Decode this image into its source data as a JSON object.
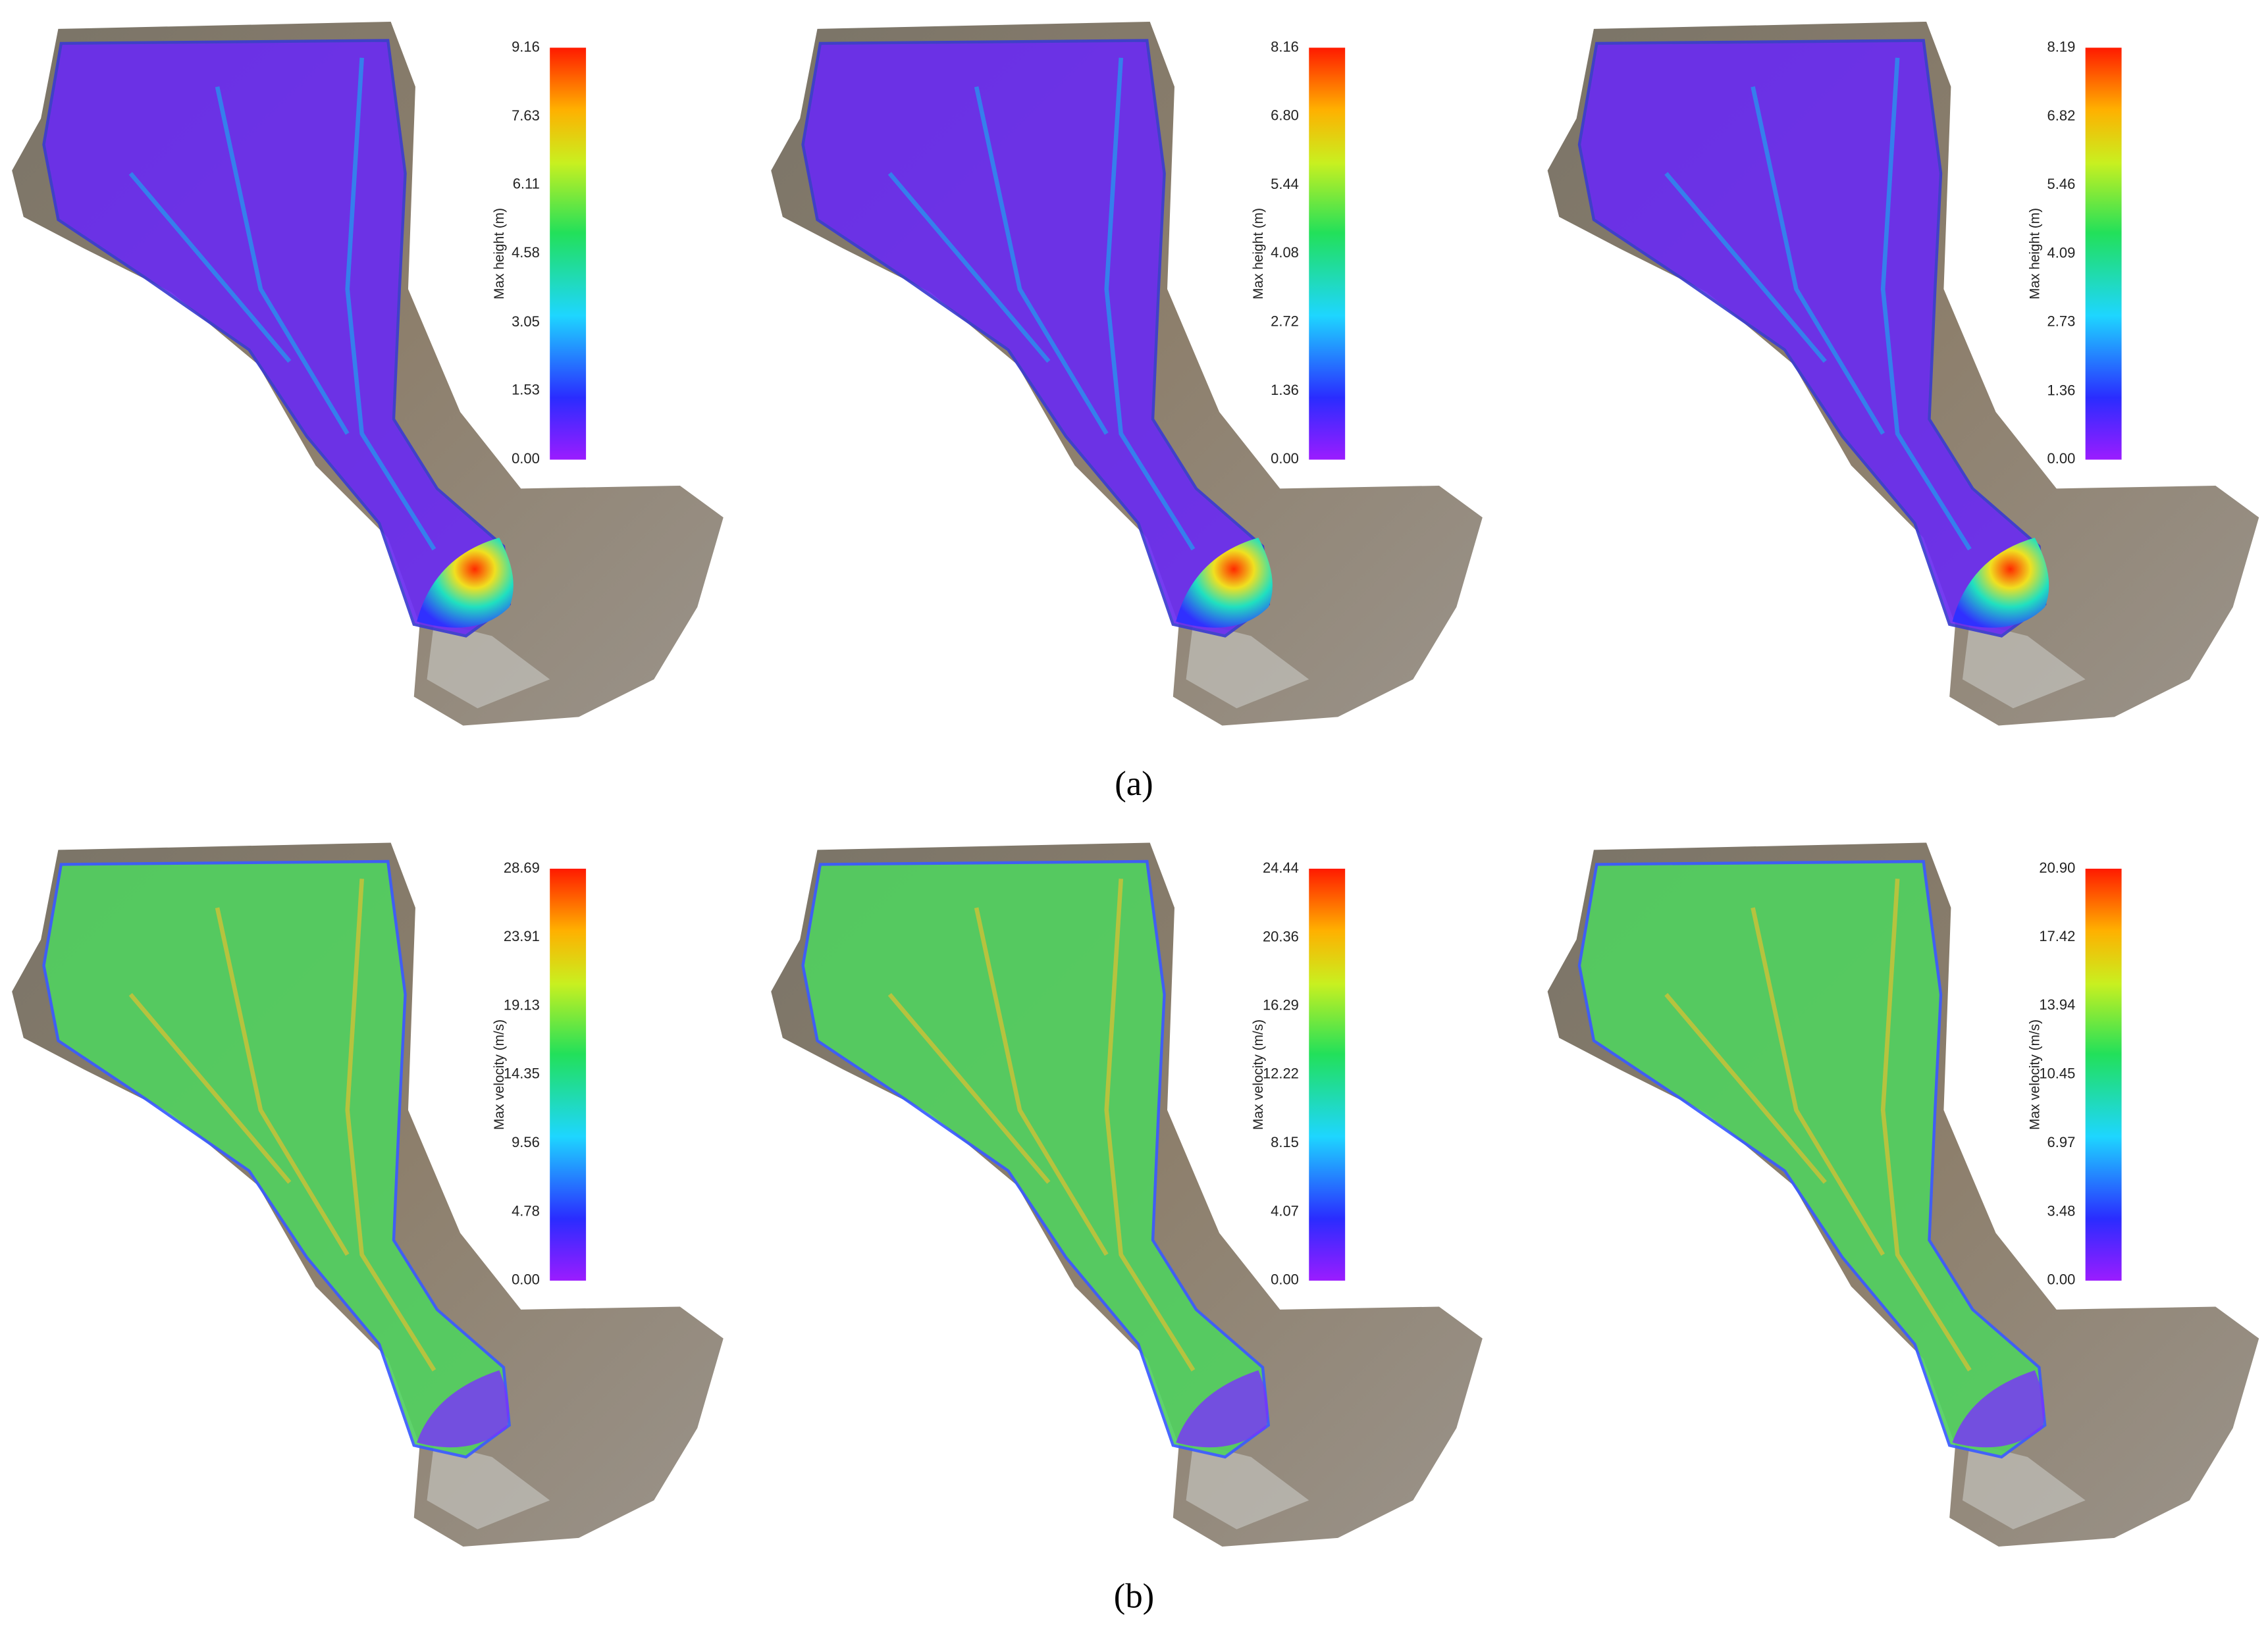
{
  "figure": {
    "panels": [
      {
        "label": "Max height (m)",
        "ylim": [
          0,
          9.16
        ],
        "yticks": [
          {
            "value": 0,
            "label": "0.00"
          },
          1.53,
          3.05,
          4.58,
          6.11,
          7.63,
          9.16
        ]
      },
      {
        "label": "Max height (m)",
        "ylim": [
          0,
          8.16
        ],
        "yticks": [
          {
            "value": 0,
            "label": "0.00"
          },
          1.36,
          2.72,
          4.08,
          5.44,
          {
            "value": 6.8,
            "label": "6.80"
          },
          8.16
        ]
      },
      {
        "label": "Max height (m)",
        "ylim": [
          0,
          8.19
        ],
        "yticks": [
          {
            "value": 0,
            "label": "0.00"
          },
          1.36,
          2.73,
          4.09,
          5.46,
          6.82,
          8.19
        ]
      },
      {
        "label": "Max velocity (m/s)",
        "ylim": [
          0,
          28.69
        ],
        "yticks": [
          {
            "value": 0,
            "label": "0.00"
          },
          4.78,
          9.56,
          14.35,
          19.13,
          23.91,
          28.69
        ]
      },
      {
        "label": "Max velocity (m/s)",
        "ylim": [
          0,
          24.44
        ],
        "yticks": [
          {
            "value": 0,
            "label": "0.00"
          },
          4.07,
          8.15,
          12.22,
          16.29,
          20.36,
          24.44
        ]
      },
      {
        "label": "Max velocity (m/s)",
        "ylim": [
          0,
          20.9
        ],
        "yticks": [
          {
            "value": 0,
            "label": "0.00"
          },
          3.48,
          6.97,
          10.45,
          13.94,
          17.42,
          {
            "value": 20.9,
            "label": "20.90"
          }
        ]
      }
    ],
    "captions": [
      "(a)",
      "(b)"
    ]
  }
}
